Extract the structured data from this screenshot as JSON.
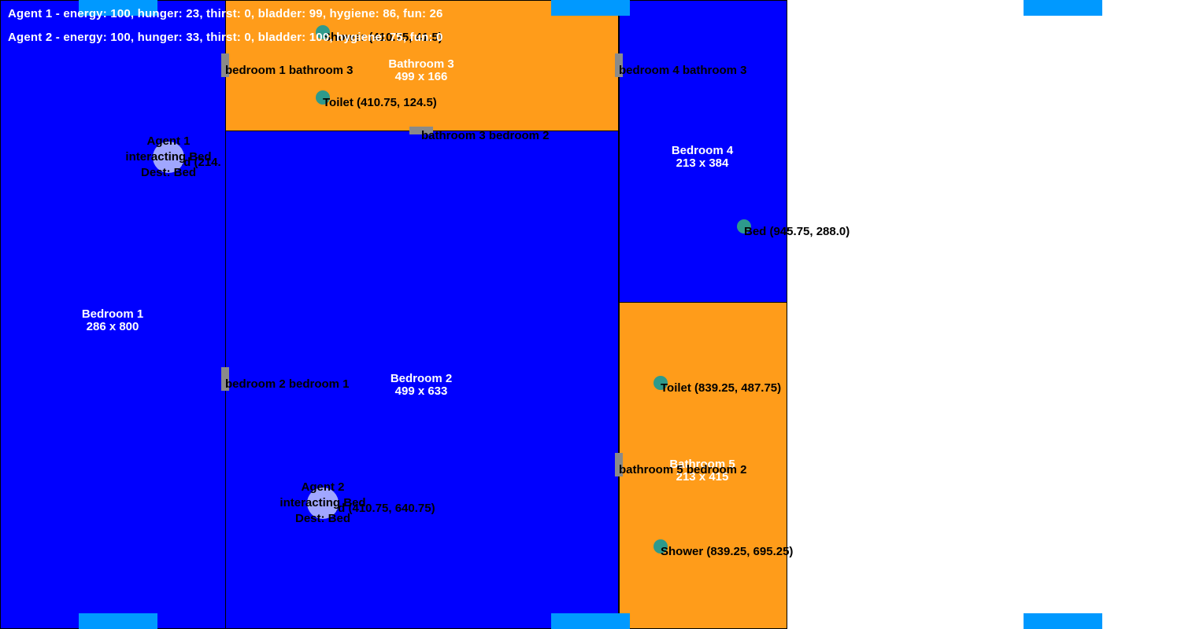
{
  "status": {
    "agent1": "Agent 1 - energy: 100, hunger: 23, thirst: 0, bladder: 99, hygiene: 86, fun: 26",
    "agent2": "Agent 2 - energy: 100, hunger: 33, thirst: 0, bladder: 100, hygiene: 75, fun: 0"
  },
  "rooms": {
    "bedroom1": {
      "name": "Bedroom 1",
      "size": "286 x 800"
    },
    "bedroom2": {
      "name": "Bedroom 2",
      "size": "499 x 633"
    },
    "bathroom3": {
      "name": "Bathroom 3",
      "size": "499 x 166"
    },
    "bedroom4": {
      "name": "Bedroom 4",
      "size": "213 x 384"
    },
    "bathroom5": {
      "name": "Bathroom 5",
      "size": "213 x 415"
    }
  },
  "doors": {
    "bedroom1_bathroom3": "bedroom 1 bathroom 3",
    "bedroom4_bathroom3": "bedroom 4 bathroom 3",
    "bathroom3_bedroom2": "bathroom 3 bedroom 2",
    "bedroom2_bedroom1": "bedroom 2 bedroom 1",
    "bathroom5_bedroom2": "bathroom 5 bedroom 2"
  },
  "objects": {
    "shower3": "Shower (410.75, 41.5)",
    "toilet3": "Toilet (410.75, 124.5)",
    "bed1": "Bed (214.",
    "bed4": "Bed (945.75, 288.0)",
    "toilet5": "Toilet (839.25, 487.75)",
    "bed2": "Bed (410.75, 640.75)",
    "shower5": "Shower (839.25, 695.25)"
  },
  "agents": {
    "agent1": {
      "name": "Agent 1",
      "action": "interacting Bed",
      "dest": "Dest: Bed"
    },
    "agent2": {
      "name": "Agent 2",
      "action": "interacting Bed",
      "dest": "Dest: Bed"
    }
  },
  "colors": {
    "bedroom": "#0000ff",
    "bathroom": "#ff9c1a",
    "window": "#0099ff",
    "door": "#8a8a8a",
    "object": "#2e9a8c",
    "agent": "#a0a6ff"
  }
}
